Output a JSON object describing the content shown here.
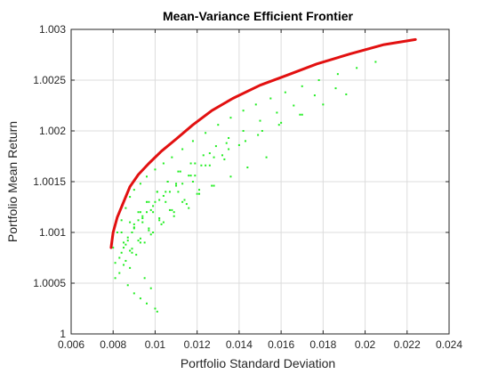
{
  "chart_data": {
    "type": "scatter",
    "title": "Mean-Variance Efficient Frontier",
    "xlabel": "Portfolio Standard Deviation",
    "ylabel": "Portfolio Mean Return",
    "xlim": [
      0.006,
      0.024
    ],
    "ylim": [
      1.0,
      1.003
    ],
    "xticks": [
      0.006,
      0.008,
      0.01,
      0.012,
      0.014,
      0.016,
      0.018,
      0.02,
      0.022,
      0.024
    ],
    "xtick_labels": [
      "0.006",
      "0.008",
      "0.01",
      "0.012",
      "0.014",
      "0.016",
      "0.018",
      "0.02",
      "0.022",
      "0.024"
    ],
    "yticks": [
      1.0,
      1.0005,
      1.001,
      1.0015,
      1.002,
      1.0025,
      1.003
    ],
    "ytick_labels": [
      "1",
      "1.0005",
      "1.001",
      "1.0015",
      "1.002",
      "1.0025",
      "1.003"
    ],
    "grid": true,
    "legend": "none",
    "colors": {
      "frontier": "#e21010",
      "portfolios": "#22ee22",
      "grid": "#dcdcdc",
      "axes": "#262626"
    },
    "series": [
      {
        "type": "line",
        "x": [
          0.0079,
          0.008,
          0.0082,
          0.0085,
          0.0088,
          0.0092,
          0.0097,
          0.0103,
          0.011,
          0.0118,
          0.0127,
          0.0137,
          0.015,
          0.0163,
          0.0177,
          0.0193,
          0.0209,
          0.0224
        ],
        "y": [
          1.00085,
          1.001,
          1.00115,
          1.0013,
          1.00145,
          1.00157,
          1.00168,
          1.0018,
          1.00192,
          1.00206,
          1.0022,
          1.00232,
          1.00245,
          1.00255,
          1.00266,
          1.00276,
          1.00285,
          1.0029
        ]
      },
      {
        "type": "scatter",
        "x": [
          0.008,
          0.0082,
          0.0084,
          0.0086,
          0.0088,
          0.009,
          0.0093,
          0.0096,
          0.01,
          0.0104,
          0.0108,
          0.0113,
          0.0118,
          0.0124,
          0.013,
          0.0136,
          0.0142,
          0.0148,
          0.0155,
          0.0162,
          0.017,
          0.0178,
          0.0187,
          0.0196,
          0.0205,
          0.0085,
          0.0087,
          0.009,
          0.0093,
          0.0097,
          0.0101,
          0.0106,
          0.0111,
          0.0117,
          0.0123,
          0.0129,
          0.0135,
          0.0142,
          0.015,
          0.0158,
          0.0166,
          0.0176,
          0.0186,
          0.0083,
          0.0086,
          0.0089,
          0.0092,
          0.0096,
          0.01,
          0.0105,
          0.011,
          0.0116,
          0.0122,
          0.0128,
          0.0135,
          0.0143,
          0.0151,
          0.016,
          0.017,
          0.0081,
          0.0084,
          0.0087,
          0.009,
          0.0094,
          0.0098,
          0.0102,
          0.0107,
          0.0113,
          0.0119,
          0.0126,
          0.0133,
          0.0088,
          0.0091,
          0.0095,
          0.0099,
          0.0104,
          0.0109,
          0.0115,
          0.0121,
          0.0128,
          0.0136,
          0.0144,
          0.0153,
          0.0083,
          0.0086,
          0.0089,
          0.0093,
          0.0097,
          0.0102,
          0.0107,
          0.0113,
          0.012,
          0.0127,
          0.0081,
          0.0085,
          0.0089,
          0.0093,
          0.0098,
          0.0103,
          0.0109,
          0.0116,
          0.009,
          0.0094,
          0.0099,
          0.0104,
          0.011,
          0.0117,
          0.0124,
          0.0132,
          0.014,
          0.0149,
          0.0159,
          0.0169,
          0.018,
          0.0191,
          0.0084,
          0.0088,
          0.0092,
          0.0096,
          0.0101,
          0.0106,
          0.0112,
          0.0119,
          0.0126,
          0.0134,
          0.0085,
          0.0089,
          0.0094,
          0.0099,
          0.0105,
          0.0111,
          0.0118,
          0.0088,
          0.0092,
          0.0097,
          0.0102,
          0.0108,
          0.0114,
          0.0121,
          0.0087,
          0.009,
          0.0093,
          0.0096,
          0.01,
          0.0101,
          0.0095,
          0.0098
        ],
        "y": [
          1.00085,
          1.001,
          1.00112,
          1.00124,
          1.00135,
          1.00142,
          1.00148,
          1.00155,
          1.00162,
          1.00168,
          1.00174,
          1.00182,
          1.0019,
          1.00198,
          1.00206,
          1.00213,
          1.0022,
          1.00226,
          1.00232,
          1.00238,
          1.00244,
          1.0025,
          1.00256,
          1.00262,
          1.00268,
          1.00085,
          1.00095,
          1.00108,
          1.0012,
          1.0013,
          1.0014,
          1.0015,
          1.0016,
          1.00168,
          1.00176,
          1.00185,
          1.00193,
          1.002,
          1.0021,
          1.00218,
          1.00225,
          1.00235,
          1.00242,
          1.00075,
          1.00088,
          1.001,
          1.00112,
          1.0012,
          1.0013,
          1.0014,
          1.00148,
          1.00156,
          1.00166,
          1.00174,
          1.00182,
          1.0019,
          1.002,
          1.00208,
          1.00216,
          1.0007,
          1.0008,
          1.00092,
          1.00104,
          1.00114,
          1.00122,
          1.00132,
          1.0014,
          1.00148,
          1.00156,
          1.00166,
          1.00172,
          1.00065,
          1.00078,
          1.0009,
          1.001,
          1.0011,
          1.0012,
          1.00128,
          1.00138,
          1.00146,
          1.00155,
          1.00164,
          1.00174,
          1.0006,
          1.00072,
          1.00084,
          1.00094,
          1.00104,
          1.00114,
          1.00122,
          1.0013,
          1.00138,
          1.00146,
          1.00055,
          1.00068,
          1.0008,
          1.0009,
          1.00098,
          1.00108,
          1.00116,
          1.00124,
          1.00105,
          1.00116,
          1.00126,
          1.00136,
          1.00146,
          1.00156,
          1.00166,
          1.00176,
          1.00186,
          1.00196,
          1.00206,
          1.00216,
          1.00226,
          1.00236,
          1.001,
          1.0011,
          1.0012,
          1.0013,
          1.0014,
          1.0015,
          1.0016,
          1.00168,
          1.00178,
          1.00188,
          1.0009,
          1.001,
          1.0011,
          1.0012,
          1.0013,
          1.0014,
          1.0015,
          1.00082,
          1.00092,
          1.00102,
          1.00112,
          1.00122,
          1.00132,
          1.00142,
          1.00048,
          1.0004,
          1.00035,
          1.0003,
          1.00025,
          1.00022,
          1.00055,
          1.00045
        ]
      }
    ]
  }
}
